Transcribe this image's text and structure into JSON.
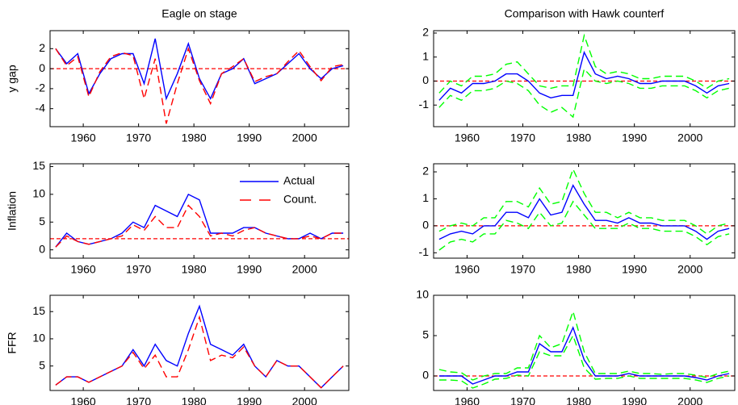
{
  "chart_data": [
    {
      "type": "line",
      "title": "Eagle on stage",
      "ylabel": "y gap",
      "x": [
        1955,
        1957,
        1959,
        1961,
        1963,
        1965,
        1967,
        1969,
        1971,
        1973,
        1975,
        1977,
        1979,
        1981,
        1983,
        1985,
        1987,
        1989,
        1991,
        1993,
        1995,
        1997,
        1999,
        2001,
        2003,
        2005,
        2007
      ],
      "xlim": [
        1954,
        2008
      ],
      "xticks": [
        1960,
        1970,
        1980,
        1990,
        2000
      ],
      "ylim": [
        -5.8,
        3.8
      ],
      "yticks": [
        -4,
        -2,
        0,
        2
      ],
      "hline": 0,
      "hline_color": "#ff0000",
      "series": [
        {
          "color": "#0000ff",
          "dash": false,
          "values": [
            2,
            0.5,
            1.5,
            -2.5,
            -0.5,
            1,
            1.5,
            1.5,
            -1.5,
            3,
            -3,
            -0.5,
            2.5,
            -1,
            -3,
            -0.5,
            0,
            1,
            -1.5,
            -1,
            -0.5,
            0.5,
            1.5,
            0,
            -1,
            0,
            0.3
          ]
        },
        {
          "color": "#ff0000",
          "dash": true,
          "values": [
            2,
            0.3,
            1.2,
            -2.8,
            -0.3,
            1.2,
            1.6,
            1.3,
            -3,
            1,
            -5.5,
            -1.5,
            2,
            -1.2,
            -3.5,
            -0.5,
            0.2,
            1,
            -1.3,
            -0.8,
            -0.5,
            0.7,
            1.8,
            0.2,
            -1.2,
            0.2,
            0.4
          ]
        }
      ]
    },
    {
      "type": "line",
      "ylabel": "Inflation",
      "x": [
        1955,
        1957,
        1959,
        1961,
        1963,
        1965,
        1967,
        1969,
        1971,
        1973,
        1975,
        1977,
        1979,
        1981,
        1983,
        1985,
        1987,
        1989,
        1991,
        1993,
        1995,
        1997,
        1999,
        2001,
        2003,
        2005,
        2007
      ],
      "xlim": [
        1954,
        2008
      ],
      "xticks": [
        1960,
        1970,
        1980,
        1990,
        2000
      ],
      "ylim": [
        -1.5,
        15.5
      ],
      "yticks": [
        0,
        5,
        10,
        15
      ],
      "hline": 2,
      "hline_color": "#ff0000",
      "legend": "upper right",
      "series": [
        {
          "name": "Actual",
          "color": "#0000ff",
          "dash": false,
          "values": [
            0.5,
            3,
            1.5,
            1,
            1.5,
            2,
            3,
            5,
            4,
            8,
            7,
            6,
            10,
            9,
            3,
            3,
            3,
            4,
            4,
            3,
            2.5,
            2,
            2,
            3,
            2,
            3,
            3
          ]
        },
        {
          "name": "Count.",
          "color": "#ff0000",
          "dash": true,
          "values": [
            0.5,
            2.5,
            1.5,
            1,
            1.5,
            2,
            2.5,
            4.5,
            3.5,
            6,
            4,
            4,
            8,
            6,
            2.5,
            3,
            2.5,
            3.5,
            4,
            3,
            2.5,
            2,
            2,
            2.5,
            2,
            3,
            3
          ]
        }
      ]
    },
    {
      "type": "line",
      "ylabel": "FFR",
      "x": [
        1955,
        1957,
        1959,
        1961,
        1963,
        1965,
        1967,
        1969,
        1971,
        1973,
        1975,
        1977,
        1979,
        1981,
        1983,
        1985,
        1987,
        1989,
        1991,
        1993,
        1995,
        1997,
        1999,
        2001,
        2003,
        2005,
        2007
      ],
      "xlim": [
        1954,
        2008
      ],
      "xticks": [
        1960,
        1970,
        1980,
        1990,
        2000
      ],
      "ylim": [
        0.5,
        18
      ],
      "yticks": [
        5,
        10,
        15
      ],
      "series": [
        {
          "color": "#0000ff",
          "dash": false,
          "values": [
            1.5,
            3,
            3,
            2,
            3,
            4,
            5,
            8,
            5,
            9,
            6,
            5,
            11,
            16,
            9,
            8,
            7,
            9,
            5,
            3,
            6,
            5,
            5,
            3,
            1,
            3,
            5
          ]
        },
        {
          "color": "#ff0000",
          "dash": true,
          "values": [
            1.5,
            3,
            3,
            2,
            3,
            4,
            5,
            7.5,
            4.5,
            7,
            3,
            3,
            8,
            14,
            6,
            7,
            6.5,
            8.5,
            5,
            3,
            6,
            5,
            5,
            3,
            1,
            3,
            5
          ]
        }
      ]
    },
    {
      "type": "line",
      "title": "Comparison with Hawk counterf",
      "x": [
        1955,
        1957,
        1959,
        1961,
        1963,
        1965,
        1967,
        1969,
        1971,
        1973,
        1975,
        1977,
        1979,
        1981,
        1983,
        1985,
        1987,
        1989,
        1991,
        1993,
        1995,
        1997,
        1999,
        2001,
        2003,
        2005,
        2007
      ],
      "xlim": [
        1954,
        2008
      ],
      "xticks": [
        1960,
        1970,
        1980,
        1990,
        2000
      ],
      "ylim": [
        -1.9,
        2.1
      ],
      "yticks": [
        -1,
        0,
        1,
        2
      ],
      "hline": 0,
      "hline_color": "#ff0000",
      "series": [
        {
          "color": "#00ff00",
          "dash": true,
          "values": [
            -0.5,
            0,
            -0.2,
            0.2,
            0.2,
            0.3,
            0.7,
            0.8,
            0.3,
            -0.2,
            -0.3,
            -0.2,
            -0.2,
            1.9,
            0.6,
            0.3,
            0.4,
            0.3,
            0.1,
            0.1,
            0.2,
            0.2,
            0.2,
            0,
            -0.3,
            0,
            0.1
          ]
        },
        {
          "color": "#00ff00",
          "dash": true,
          "values": [
            -1.1,
            -0.6,
            -0.8,
            -0.4,
            -0.4,
            -0.3,
            0,
            -0.1,
            -0.4,
            -1,
            -1.3,
            -1.1,
            -1.5,
            0.5,
            0,
            -0.1,
            0,
            -0.1,
            -0.3,
            -0.3,
            -0.2,
            -0.2,
            -0.2,
            -0.4,
            -0.7,
            -0.4,
            -0.3
          ]
        },
        {
          "color": "#0000ff",
          "dash": false,
          "values": [
            -0.8,
            -0.3,
            -0.5,
            -0.1,
            -0.1,
            0,
            0.3,
            0.3,
            0,
            -0.5,
            -0.7,
            -0.6,
            -0.6,
            1.2,
            0.3,
            0.1,
            0.2,
            0.1,
            -0.1,
            -0.1,
            0,
            0,
            0,
            -0.2,
            -0.5,
            -0.2,
            -0.1
          ]
        }
      ]
    },
    {
      "type": "line",
      "x": [
        1955,
        1957,
        1959,
        1961,
        1963,
        1965,
        1967,
        1969,
        1971,
        1973,
        1975,
        1977,
        1979,
        1981,
        1983,
        1985,
        1987,
        1989,
        1991,
        1993,
        1995,
        1997,
        1999,
        2001,
        2003,
        2005,
        2007
      ],
      "xlim": [
        1954,
        2008
      ],
      "xticks": [
        1960,
        1970,
        1980,
        1990,
        2000
      ],
      "ylim": [
        -1.2,
        2.3
      ],
      "yticks": [
        -1,
        0,
        1,
        2
      ],
      "hline": 0,
      "hline_color": "#ff0000",
      "series": [
        {
          "color": "#00ff00",
          "dash": true,
          "values": [
            -0.2,
            0,
            0.1,
            0,
            0.3,
            0.3,
            0.9,
            0.9,
            0.7,
            1.4,
            0.8,
            0.9,
            2.1,
            1.2,
            0.5,
            0.5,
            0.3,
            0.5,
            0.3,
            0.3,
            0.2,
            0.2,
            0.2,
            0,
            -0.3,
            0,
            0.1
          ]
        },
        {
          "color": "#00ff00",
          "dash": true,
          "values": [
            -0.9,
            -0.6,
            -0.5,
            -0.6,
            -0.3,
            -0.3,
            0.2,
            0.1,
            -0.1,
            0.5,
            0,
            0.1,
            0.9,
            0.4,
            -0.1,
            -0.1,
            -0.1,
            0.1,
            -0.1,
            -0.1,
            -0.2,
            -0.2,
            -0.2,
            -0.4,
            -0.7,
            -0.4,
            -0.3
          ]
        },
        {
          "color": "#0000ff",
          "dash": false,
          "values": [
            -0.5,
            -0.3,
            -0.2,
            -0.3,
            0,
            0,
            0.5,
            0.5,
            0.3,
            1,
            0.4,
            0.5,
            1.5,
            0.8,
            0.2,
            0.2,
            0.1,
            0.3,
            0.1,
            0.1,
            0,
            0,
            0,
            -0.2,
            -0.5,
            -0.2,
            -0.1
          ]
        }
      ]
    },
    {
      "type": "line",
      "x": [
        1955,
        1957,
        1959,
        1961,
        1963,
        1965,
        1967,
        1969,
        1971,
        1973,
        1975,
        1977,
        1979,
        1981,
        1983,
        1985,
        1987,
        1989,
        1991,
        1993,
        1995,
        1997,
        1999,
        2001,
        2003,
        2005,
        2007
      ],
      "xlim": [
        1954,
        2008
      ],
      "xticks": [
        1960,
        1970,
        1980,
        1990,
        2000
      ],
      "ylim": [
        -1.8,
        10
      ],
      "yticks": [
        0,
        5,
        10
      ],
      "hline": 0,
      "hline_color": "#ff0000",
      "series": [
        {
          "color": "#00ff00",
          "dash": true,
          "values": [
            0.8,
            0.5,
            0.4,
            -0.5,
            0,
            0.3,
            0.3,
            1,
            1,
            5,
            3.5,
            4,
            8,
            3,
            0.3,
            0.3,
            0.3,
            0.6,
            0.3,
            0.3,
            0.2,
            0.3,
            0.3,
            0.1,
            -0.2,
            0.3,
            0.6
          ]
        },
        {
          "color": "#00ff00",
          "dash": true,
          "values": [
            -0.5,
            -0.5,
            -0.6,
            -1.5,
            -1,
            -0.4,
            -0.3,
            0.1,
            0,
            3,
            2.5,
            2.5,
            5,
            1,
            -0.4,
            -0.3,
            -0.3,
            0,
            -0.3,
            -0.3,
            -0.3,
            -0.3,
            -0.3,
            -0.5,
            -0.8,
            -0.3,
            0
          ]
        },
        {
          "color": "#0000ff",
          "dash": false,
          "values": [
            0,
            0,
            0,
            -1,
            -0.5,
            0,
            0,
            0.5,
            0.5,
            4,
            3,
            3,
            6,
            2,
            0,
            0,
            0,
            0.3,
            0,
            0,
            0,
            0,
            0,
            -0.2,
            -0.5,
            0,
            0.3
          ]
        }
      ]
    }
  ]
}
